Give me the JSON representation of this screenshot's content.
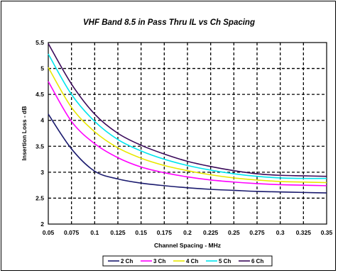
{
  "chart_data": {
    "type": "line",
    "title": "VHF Band 8.5 in Pass Thru IL vs Ch Spacing",
    "xlabel": "Channel Spacing - MHz",
    "ylabel": "Insertion Loss - dB",
    "xlim": [
      0.05,
      0.35
    ],
    "ylim": [
      2,
      5.5
    ],
    "x_ticks": [
      0.05,
      0.075,
      0.1,
      0.125,
      0.15,
      0.175,
      0.2,
      0.225,
      0.25,
      0.275,
      0.3,
      0.325,
      0.35
    ],
    "x_tick_labels": [
      "0.05",
      "0.075",
      "0.1",
      "0.125",
      "0.15",
      "0.175",
      "0.2",
      "0.225",
      "0.25",
      "0.275",
      "0.3",
      "0.325",
      "0.35"
    ],
    "y_ticks": [
      2,
      2.5,
      3,
      3.5,
      4,
      4.5,
      5,
      5.5
    ],
    "y_tick_labels": [
      "2",
      "2.5",
      "3",
      "3.5",
      "4",
      "4.5",
      "5",
      "5.5"
    ],
    "grid": true,
    "legend_position": "bottom",
    "x": [
      0.05,
      0.075,
      0.1,
      0.125,
      0.15,
      0.175,
      0.2,
      0.225,
      0.25,
      0.275,
      0.3,
      0.325,
      0.35
    ],
    "series": [
      {
        "name": "2 Ch",
        "color": "#1a1a6e",
        "values": [
          4.12,
          3.45,
          3.02,
          2.87,
          2.79,
          2.74,
          2.7,
          2.67,
          2.65,
          2.63,
          2.62,
          2.61,
          2.6
        ]
      },
      {
        "name": "3 Ch",
        "color": "#ff00ff",
        "values": [
          4.75,
          3.98,
          3.55,
          3.28,
          3.1,
          2.99,
          2.91,
          2.85,
          2.81,
          2.78,
          2.76,
          2.75,
          2.74
        ]
      },
      {
        "name": "4 Ch",
        "color": "#e8e800",
        "values": [
          5.02,
          4.25,
          3.78,
          3.47,
          3.27,
          3.13,
          3.03,
          2.95,
          2.89,
          2.85,
          2.82,
          2.81,
          2.8
        ]
      },
      {
        "name": "5 Ch",
        "color": "#00e5ee",
        "values": [
          5.28,
          4.5,
          3.98,
          3.63,
          3.41,
          3.25,
          3.13,
          3.04,
          2.97,
          2.92,
          2.89,
          2.88,
          2.88
        ]
      },
      {
        "name": "6 Ch",
        "color": "#3a0a5a",
        "values": [
          5.48,
          4.7,
          4.12,
          3.75,
          3.52,
          3.35,
          3.21,
          3.11,
          3.03,
          2.97,
          2.94,
          2.93,
          2.92
        ]
      }
    ]
  }
}
